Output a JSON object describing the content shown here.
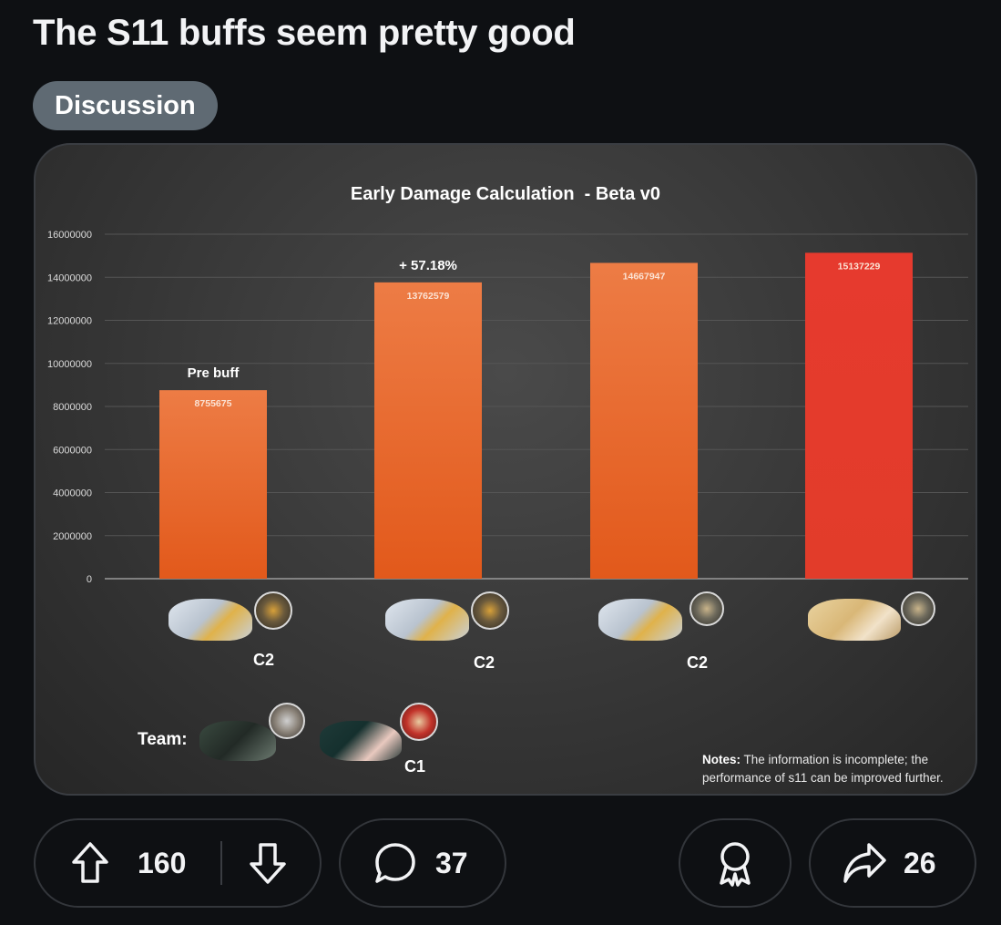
{
  "post": {
    "title": "The S11 buffs seem pretty good",
    "flair": "Discussion"
  },
  "chart_data": {
    "type": "bar",
    "title": "Early Damage Calculation  - Beta v0",
    "categories": [
      "C2",
      "C2",
      "C2",
      ""
    ],
    "values": [
      8755675,
      13762579,
      14667947,
      15137229
    ],
    "value_labels": [
      "8755675",
      "13762579",
      "14667947",
      "15137229"
    ],
    "bar_colors": [
      "#ea6a28",
      "#ea6a28",
      "#ea6a28",
      "#e23a2c"
    ],
    "annotations": [
      "Pre buff",
      "+ 57.18%",
      "",
      ""
    ],
    "ylim": [
      0,
      16000000
    ],
    "yticks": [
      "0",
      "2000000",
      "4000000",
      "6000000",
      "8000000",
      "10000000",
      "12000000",
      "14000000",
      "16000000"
    ],
    "grid": true,
    "team_label": "Team:",
    "team_constellation": "C1",
    "notes_heading": "Notes:",
    "notes_text": "The information is incomplete; the performance of s11 can be improved further."
  },
  "colors": {
    "background": "#0e1013",
    "flair": "#5f6a73",
    "bar_orange": "#ea6a28",
    "bar_red": "#e23a2c"
  },
  "actions": {
    "upvote_icon": "arrow-up-icon",
    "downvote_icon": "arrow-down-icon",
    "score": "160",
    "comment_icon": "comment-bubble-icon",
    "comments": "37",
    "award_icon": "award-ribbon-icon",
    "share_icon": "share-arrow-icon",
    "shares": "26"
  }
}
